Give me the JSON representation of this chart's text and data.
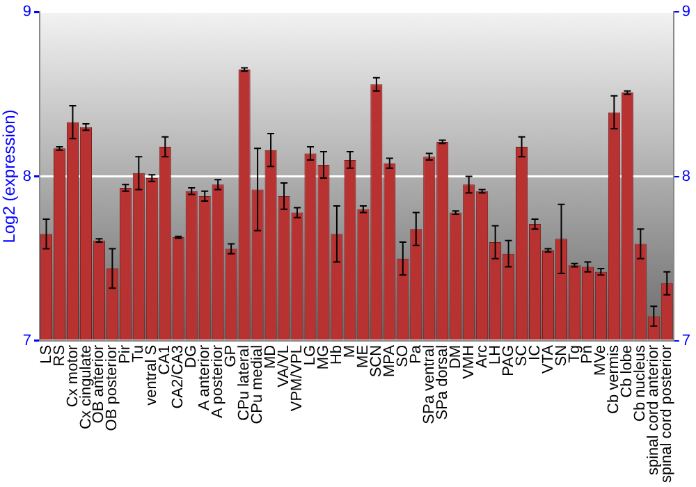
{
  "chart_data": {
    "type": "bar",
    "ylabel": "Log2 (expression)",
    "categories": [
      "LS",
      "RS",
      "Cx motor",
      "Cx cingulate",
      "OB anterior",
      "OB posterior",
      "Pir",
      "Tu",
      "ventral S",
      "CA1",
      "CA2/CA3",
      "DG",
      "A anterior",
      "A posterior",
      "GP",
      "CPu lateral",
      "CPu medial",
      "MD",
      "VA/VL",
      "VPM/VPL",
      "LG",
      "MG",
      "Hb",
      "M",
      "ME",
      "SCN",
      "MPA",
      "SO",
      "Pa",
      "SPa ventral",
      "SPa dorsal",
      "DM",
      "VMH",
      "Arc",
      "LH",
      "PAG",
      "SC",
      "IC",
      "VTA",
      "SN",
      "Tg",
      "Pn",
      "MVe",
      "Cb vermis",
      "Cb lobe",
      "Cb nucleus",
      "spinal cord anterior",
      "spinal cord posterior"
    ],
    "values": [
      7.65,
      8.17,
      8.33,
      8.3,
      7.61,
      7.44,
      7.93,
      8.02,
      7.99,
      8.18,
      7.63,
      7.91,
      7.88,
      7.95,
      7.56,
      8.65,
      7.92,
      8.16,
      7.88,
      7.78,
      8.14,
      8.07,
      7.65,
      8.1,
      7.8,
      8.56,
      8.08,
      7.5,
      7.68,
      8.12,
      8.21,
      7.78,
      7.95,
      7.91,
      7.6,
      7.53,
      8.18,
      7.71,
      7.55,
      7.62,
      7.46,
      7.45,
      7.42,
      8.39,
      8.51,
      7.59,
      7.15,
      7.35
    ],
    "errors": [
      0.09,
      0.01,
      0.1,
      0.02,
      0.01,
      0.12,
      0.02,
      0.1,
      0.02,
      0.06,
      0.005,
      0.02,
      0.03,
      0.03,
      0.03,
      0.01,
      0.25,
      0.1,
      0.08,
      0.03,
      0.04,
      0.08,
      0.17,
      0.05,
      0.02,
      0.04,
      0.03,
      0.1,
      0.1,
      0.02,
      0.01,
      0.01,
      0.05,
      0.01,
      0.1,
      0.08,
      0.06,
      0.03,
      0.01,
      0.21,
      0.01,
      0.03,
      0.02,
      0.1,
      0.01,
      0.09,
      0.06,
      0.07
    ],
    "color": "#b83232",
    "ylim": [
      7,
      9
    ],
    "yticks": [
      7,
      8,
      9
    ],
    "y2lim": [
      7,
      9
    ],
    "y2ticks": [
      7,
      8,
      9
    ],
    "grid": "y",
    "legend": false
  }
}
